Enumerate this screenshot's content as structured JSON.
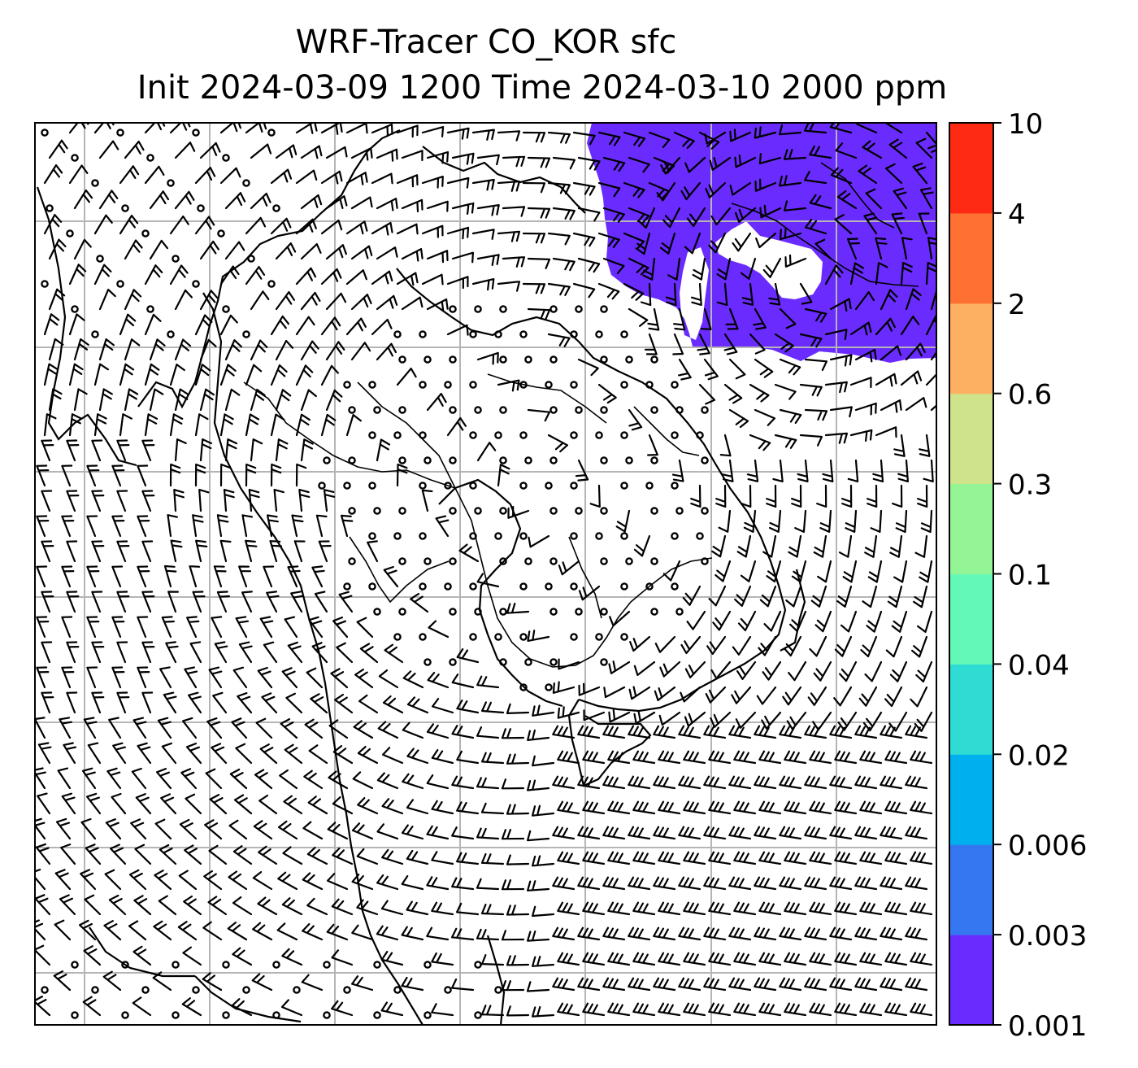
{
  "figure": {
    "title_line1": "WRF-Tracer CO_KOR sfc",
    "title_line2": "Init 2024-03-09 1200 Time 2024-03-10 2000 ppm"
  },
  "chart_data": {
    "type": "filled-contour map with wind barbs",
    "grid": true,
    "colorbar": {
      "levels": [
        "0.001",
        "0.003",
        "0.006",
        "0.02",
        "0.04",
        "0.1",
        "0.3",
        "0.6",
        "2",
        "4",
        "10"
      ],
      "colors": [
        "#6a2bff",
        "#3477f0",
        "#00b0ee",
        "#2fdcd4",
        "#63f7b8",
        "#93f596",
        "#cfe38a",
        "#fdb062",
        "#ff7033",
        "#ff2a13"
      ]
    },
    "tracer_field": {
      "visible_band": "0.001–0.003",
      "color": "#6a2bff",
      "location": "top-right"
    }
  }
}
